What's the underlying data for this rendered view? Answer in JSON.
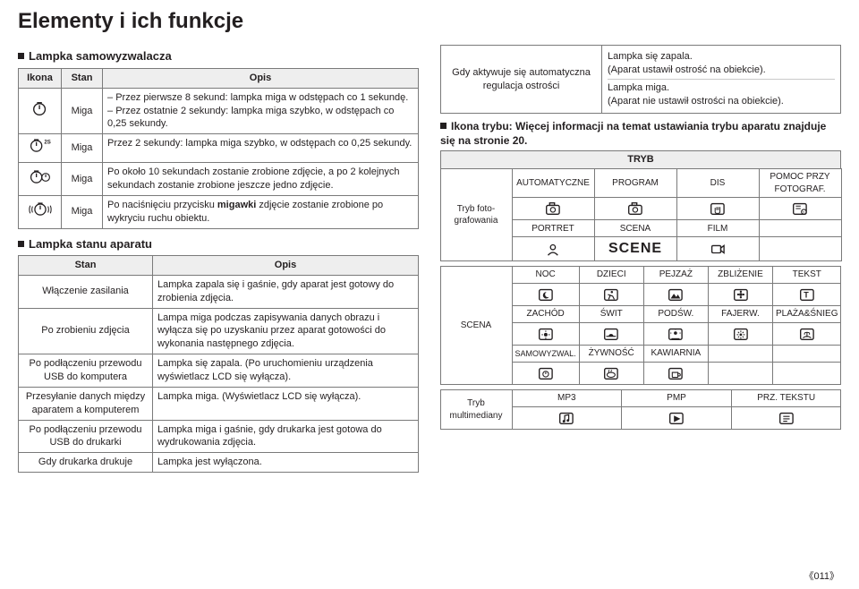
{
  "page": {
    "title": "Elementy i ich funkcje",
    "number": "《011》"
  },
  "left": {
    "lamp_selftimer_heading": "Lampka samowyzwalacza",
    "lamp_table": {
      "headers": [
        "Ikona",
        "Stan",
        "Opis"
      ],
      "rows": [
        {
          "stan": "Miga",
          "opis": [
            "Przez pierwsze 8 sekund: lampka miga w odstępach co 1 sekundę.",
            "Przez ostatnie 2 sekundy: lampka miga szybko, w odstępach co 0,25 sekundy."
          ]
        },
        {
          "stan": "Miga",
          "opis_plain": "Przez 2 sekundy: lampka miga szybko, w odstępach co 0,25 sekundy."
        },
        {
          "stan": "Miga",
          "opis_plain": "Po około 10 sekundach zostanie zrobione zdjęcie, a po 2 kolejnych sekundach zostanie zrobione jeszcze jedno zdjęcie."
        },
        {
          "stan": "Miga",
          "opis_html": "Po naciśnięciu przycisku <b>migawki</b> zdjęcie zostanie zrobione po wykryciu ruchu obiektu."
        }
      ]
    },
    "status_heading": "Lampka stanu aparatu",
    "status_table": {
      "headers": [
        "Stan",
        "Opis"
      ],
      "rows": [
        {
          "stan": "Włączenie zasilania",
          "opis": "Lampka zapala się i gaśnie, gdy aparat jest gotowy do zrobienia zdjęcia."
        },
        {
          "stan": "Po zrobieniu zdjęcia",
          "opis": "Lampa miga podczas zapisywania danych obrazu i wyłącza się po uzyskaniu przez aparat gotowości do wykonania następnego zdjęcia."
        },
        {
          "stan": "Po podłączeniu przewodu USB do komputera",
          "opis": "Lampka się zapala. (Po uruchomieniu urządzenia wyświetlacz LCD się wyłącza)."
        },
        {
          "stan": "Przesyłanie danych między aparatem a komputerem",
          "opis": "Lampka miga. (Wyświetlacz LCD się wyłącza)."
        },
        {
          "stan": "Po podłączeniu przewodu USB do drukarki",
          "opis": "Lampka miga i gaśnie, gdy drukarka jest gotowa do wydrukowania zdjęcia."
        },
        {
          "stan": "Gdy drukarka drukuje",
          "opis": "Lampka jest wyłączona."
        }
      ]
    }
  },
  "right": {
    "top_left": "Gdy aktywuje się automatyczna regulacja ostrości",
    "top_right": [
      "Lampka się zapala.\n(Aparat ustawił ostrość na obiekcie).",
      "Lampka miga.\n(Aparat nie ustawił ostrości na obiekcie)."
    ],
    "mode_heading": "Ikona trybu: Więcej informacji na temat ustawiania trybu aparatu znajduje się na stronie 20.",
    "tryb_label": "TRYB",
    "foto_rowhead": "Tryb foto-\ngrafowania",
    "foto_row1": [
      "AUTOMATYCZNE",
      "PROGRAM",
      "DIS",
      "POMOC PRZY FOTOGRAF."
    ],
    "foto_row2": [
      "PORTRET",
      "SCENA",
      "FILM",
      ""
    ],
    "scena_rowhead": "SCENA",
    "scena_row1": [
      "NOC",
      "DZIECI",
      "PEJZAŻ",
      "ZBLIŻENIE",
      "TEKST"
    ],
    "scena_row2": [
      "ZACHÓD",
      "ŚWIT",
      "PODŚW.",
      "FAJERW.",
      "PLAŻA&ŚNIEG"
    ],
    "scena_row3": [
      "SAMOWYZWAL.",
      "ŻYWNOŚĆ",
      "KAWIARNIA",
      "",
      ""
    ],
    "mm_rowhead": "Tryb\nmultimediany",
    "mm_row": [
      "MP3",
      "PMP",
      "PRZ. TEKSTU"
    ],
    "scene_big": "SCENE"
  },
  "colors": {
    "text": "#231f20",
    "border": "#7a7a7a",
    "th_bg": "#eeeeee",
    "bg": "#ffffff"
  }
}
